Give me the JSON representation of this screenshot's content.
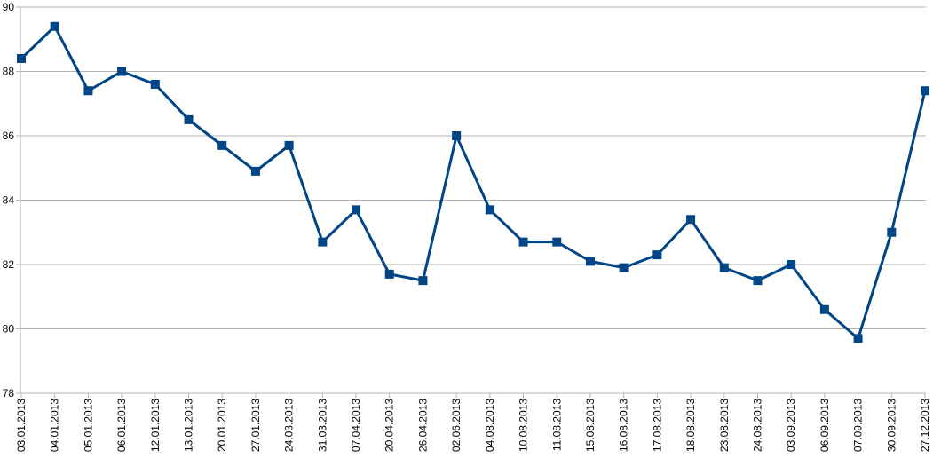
{
  "chart_data": {
    "type": "line",
    "title": "",
    "xlabel": "",
    "ylabel": "",
    "ylim": [
      78,
      90
    ],
    "yticks": [
      78,
      80,
      82,
      84,
      86,
      88,
      90
    ],
    "grid": true,
    "legend": "none",
    "series_color": "#004586",
    "categories": [
      "03.01.2013",
      "04.01.2013",
      "05.01.2013",
      "06.01.2013",
      "12.01.2013",
      "13.01.2013",
      "20.01.2013",
      "27.01.2013",
      "24.03.2013",
      "31.03.2013",
      "07.04.2013",
      "20.04.2013",
      "26.04.2013",
      "02.06.2013",
      "04.08.2013",
      "10.08.2013",
      "11.08.2013",
      "15.08.2013",
      "16.08.2013",
      "17.08.2013",
      "18.08.2013",
      "23.08.2013",
      "24.08.2013",
      "03.09.2013",
      "06.09.2013",
      "07.09.2013",
      "30.09.2013",
      "27.12.2013"
    ],
    "series": [
      {
        "values": [
          88.4,
          89.4,
          87.4,
          88.0,
          87.6,
          86.5,
          85.7,
          84.9,
          85.7,
          82.7,
          83.7,
          81.7,
          81.5,
          86.0,
          83.7,
          82.7,
          82.7,
          82.1,
          81.9,
          82.3,
          83.4,
          81.9,
          81.5,
          82.0,
          80.6,
          79.7,
          83.0,
          87.4
        ]
      }
    ]
  }
}
